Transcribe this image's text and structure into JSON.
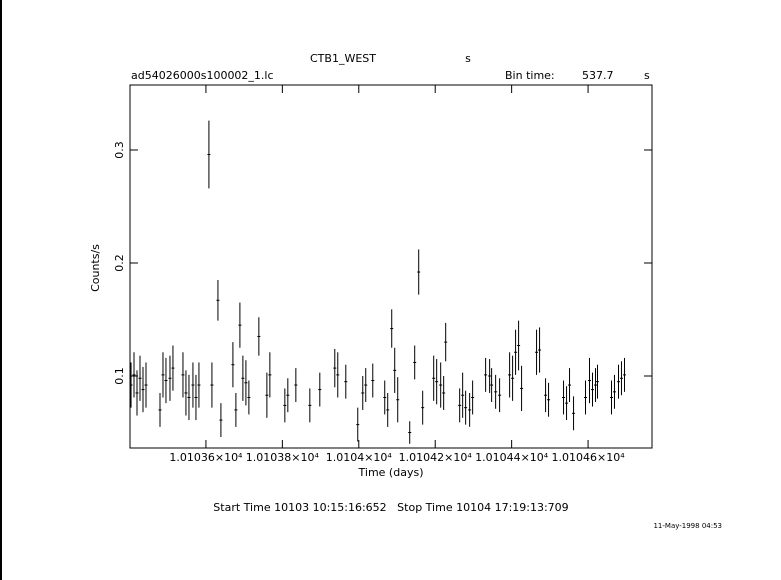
{
  "chart_data": {
    "type": "scatter",
    "title": "CTB1_WEST",
    "title_unit": "s",
    "file_name": "ad54026000s100002_1.lc",
    "bin_time_label": "Bin time:",
    "bin_time": "537.7",
    "bin_time_unit": "s",
    "x_label": "Time (days)",
    "y_label": "Counts/s",
    "time_range": "Start Time 10103 10:15:16:652   Stop Time 10104 17:19:13:709",
    "date_stamp": "11-May-1998 04:53",
    "color": "#000000",
    "xlim": [
      10103.4013,
      10104.7673
    ],
    "ylim": [
      0.0363,
      0.3575
    ],
    "xticks": [
      {
        "value": 10103.6,
        "label": "1.01036×10⁴"
      },
      {
        "value": 10103.8,
        "label": "1.01038×10⁴"
      },
      {
        "value": 10104.0,
        "label": "1.0104×10⁴"
      },
      {
        "value": 10104.2,
        "label": "1.01042×10⁴"
      },
      {
        "value": 10104.4,
        "label": "1.01044×10⁴"
      },
      {
        "value": 10104.6,
        "label": "1.01046×10⁴"
      }
    ],
    "yticks": [
      0.1,
      0.2,
      0.3
    ],
    "x": [
      10103.404,
      10103.4118,
      10103.4196,
      10103.4275,
      10103.4353,
      10103.4432,
      10103.4798,
      10103.4876,
      10103.4954,
      10103.5059,
      10103.5137,
      10103.5399,
      10103.5477,
      10103.5556,
      10103.566,
      10103.5739,
      10103.5817,
      10103.6078,
      10103.6157,
      10103.6314,
      10103.6392,
      10103.6706,
      10103.6784,
      10103.6889,
      10103.6967,
      10103.7046,
      10103.7124,
      10103.7385,
      10103.7595,
      10103.7673,
      10103.8065,
      10103.8143,
      10103.8353,
      10103.8719,
      10103.898,
      10103.9372,
      10103.945,
      10103.966,
      10103.9973,
      10104.0104,
      10104.0182,
      10104.0366,
      10104.0679,
      10104.0757,
      10104.0862,
      10104.094,
      10104.1019,
      10104.1333,
      10104.1463,
      10104.1568,
      10104.1672,
      10104.196,
      10104.2038,
      10104.2143,
      10104.2221,
      10104.2274,
      10104.264,
      10104.2718,
      10104.2796,
      10104.2901,
      10104.2979,
      10104.3319,
      10104.3424,
      10104.3476,
      10104.3581,
      10104.3685,
      10104.3947,
      10104.4025,
      10104.4103,
      10104.4182,
      10104.426,
      10104.4652,
      10104.4731,
      10104.4888,
      10104.4966,
      10104.5358,
      10104.5437,
      10104.5515,
      10104.562,
      10104.5933,
      10104.6038,
      10104.6116,
      10104.6195,
      10104.6247,
      10104.6613,
      10104.6691,
      10104.6796,
      10104.6874,
      10104.6953
    ],
    "values": [
      0.092,
      0.101,
      0.085,
      0.098,
      0.088,
      0.092,
      0.07,
      0.101,
      0.096,
      0.098,
      0.107,
      0.101,
      0.085,
      0.081,
      0.092,
      0.081,
      0.092,
      0.296,
      0.092,
      0.167,
      0.061,
      0.11,
      0.07,
      0.145,
      0.098,
      0.094,
      0.081,
      0.135,
      0.083,
      0.101,
      0.074,
      0.083,
      0.092,
      0.074,
      0.088,
      0.107,
      0.101,
      0.095,
      0.057,
      0.085,
      0.092,
      0.096,
      0.081,
      0.07,
      0.142,
      0.105,
      0.079,
      0.05,
      0.112,
      0.192,
      0.072,
      0.098,
      0.095,
      0.092,
      0.085,
      0.13,
      0.074,
      0.083,
      0.072,
      0.07,
      0.081,
      0.101,
      0.1,
      0.092,
      0.086,
      0.083,
      0.101,
      0.098,
      0.121,
      0.127,
      0.089,
      0.121,
      0.123,
      0.083,
      0.079,
      0.081,
      0.076,
      0.092,
      0.067,
      0.081,
      0.096,
      0.088,
      0.092,
      0.095,
      0.081,
      0.086,
      0.095,
      0.098,
      0.101
    ],
    "errors": [
      0.02,
      0.02,
      0.02,
      0.02,
      0.02,
      0.02,
      0.015,
      0.02,
      0.02,
      0.02,
      0.02,
      0.02,
      0.02,
      0.02,
      0.02,
      0.02,
      0.02,
      0.03,
      0.02,
      0.018,
      0.015,
      0.02,
      0.015,
      0.02,
      0.02,
      0.02,
      0.015,
      0.017,
      0.02,
      0.02,
      0.015,
      0.015,
      0.015,
      0.015,
      0.015,
      0.017,
      0.02,
      0.015,
      0.015,
      0.015,
      0.015,
      0.015,
      0.015,
      0.015,
      0.017,
      0.02,
      0.02,
      0.01,
      0.015,
      0.02,
      0.015,
      0.02,
      0.02,
      0.02,
      0.015,
      0.017,
      0.015,
      0.02,
      0.015,
      0.015,
      0.015,
      0.015,
      0.015,
      0.015,
      0.015,
      0.015,
      0.02,
      0.02,
      0.02,
      0.022,
      0.02,
      0.02,
      0.02,
      0.015,
      0.015,
      0.015,
      0.015,
      0.015,
      0.015,
      0.015,
      0.02,
      0.015,
      0.015,
      0.015,
      0.015,
      0.015,
      0.015,
      0.015,
      0.015
    ]
  }
}
